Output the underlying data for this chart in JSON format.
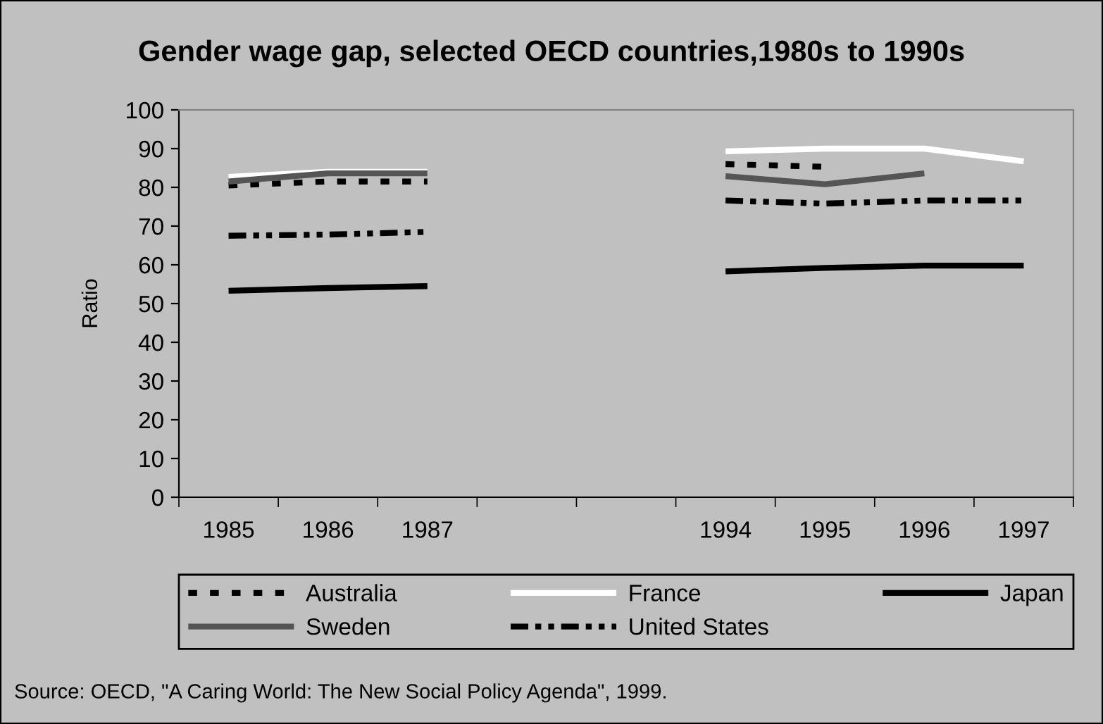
{
  "chart_data": {
    "type": "line",
    "title": "Gender wage gap, selected OECD countries,1980s to 1990s",
    "ylabel": "Ratio",
    "categories": [
      "1985",
      "1986",
      "1987",
      null,
      null,
      "1994",
      "1995",
      "1996",
      "1997"
    ],
    "series": [
      {
        "name": "Australia",
        "color": "#000000",
        "line_style": "dotted",
        "values": [
          80.5,
          81.5,
          81.5,
          null,
          null,
          86,
          85.3,
          null,
          null
        ]
      },
      {
        "name": "France",
        "color": "#ffffff",
        "line_style": "solid",
        "values": [
          82.7,
          84,
          84,
          null,
          null,
          89.3,
          90,
          90,
          86.7
        ]
      },
      {
        "name": "Japan",
        "color": "#000000",
        "line_style": "solid",
        "values": [
          53.3,
          54,
          54.5,
          null,
          null,
          58.3,
          59.2,
          59.8,
          59.8
        ]
      },
      {
        "name": "Sweden",
        "color": "#555555",
        "line_style": "solid",
        "values": [
          81.5,
          83.6,
          83.6,
          null,
          null,
          82.9,
          80.8,
          83.6,
          null
        ]
      },
      {
        "name": "United States",
        "color": "#000000",
        "line_style": "dashed",
        "values": [
          67.5,
          67.8,
          68.5,
          null,
          null,
          76.6,
          75.8,
          76.6,
          76.6
        ]
      }
    ],
    "ylim": [
      0,
      100
    ],
    "yticks": [
      0,
      10,
      20,
      30,
      40,
      50,
      60,
      70,
      80,
      90,
      100
    ],
    "grid": false,
    "legend": "bottom",
    "marker": "none",
    "annotations": [
      "Source: OECD, \"A Caring World: The New Social Policy Agenda\", 1999."
    ]
  }
}
